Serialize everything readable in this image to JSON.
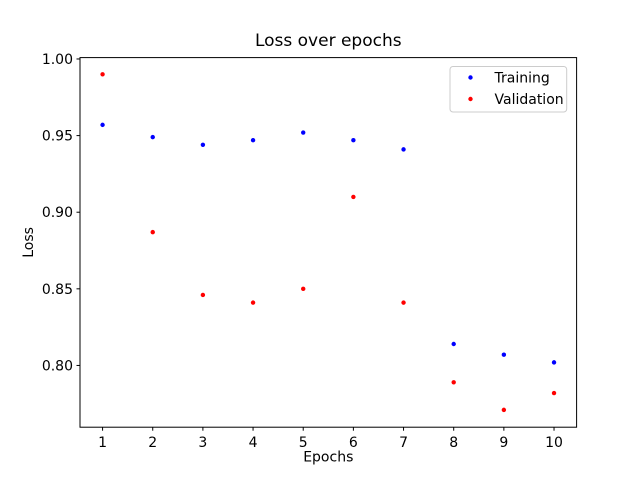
{
  "figure": {
    "background": "#ffffff"
  },
  "legend": {
    "items": [
      {
        "label": "Training",
        "color": "#0000ff"
      },
      {
        "label": "Validation",
        "color": "#ff0000"
      }
    ]
  },
  "chart_data": {
    "type": "scatter",
    "title": "Loss over epochs",
    "xlabel": "Epochs",
    "ylabel": "Loss",
    "x": [
      1,
      2,
      3,
      4,
      5,
      6,
      7,
      8,
      9,
      10
    ],
    "series": [
      {
        "name": "Training",
        "color": "#0000ff",
        "values": [
          0.957,
          0.949,
          0.944,
          0.947,
          0.952,
          0.947,
          0.941,
          0.814,
          0.807,
          0.802
        ]
      },
      {
        "name": "Validation",
        "color": "#ff0000",
        "values": [
          0.99,
          0.887,
          0.846,
          0.841,
          0.85,
          0.91,
          0.841,
          0.789,
          0.771,
          0.782
        ]
      }
    ],
    "xticks": [
      1,
      2,
      3,
      4,
      5,
      6,
      7,
      8,
      9,
      10
    ],
    "yticks": [
      0.8,
      0.85,
      0.9,
      0.95,
      1.0
    ],
    "xlim": [
      0.55,
      10.45
    ],
    "ylim": [
      0.7597,
      1.0009
    ],
    "grid": false,
    "legend_position": "upper right",
    "marker_radius_px": 2.2,
    "axis_color": "#000000",
    "legend_border_color": "#cccccc"
  }
}
